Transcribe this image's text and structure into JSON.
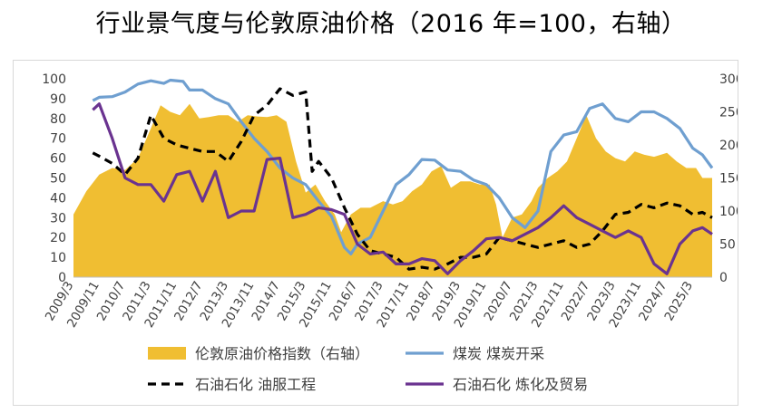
{
  "title": "行业景气度与伦敦原油价格（2016 年=100，右轴）",
  "chart_data": {
    "type": "line",
    "y_left": {
      "min": 0,
      "max": 100,
      "ticks": [
        0,
        10,
        20,
        30,
        40,
        50,
        60,
        70,
        80,
        90,
        100
      ]
    },
    "y_right": {
      "min": 0,
      "max": 300,
      "ticks": [
        0,
        50,
        100,
        150,
        200,
        250,
        300
      ]
    },
    "x_ticks": [
      "2009/3",
      "2009/11",
      "2010/7",
      "2011/3",
      "2011/11",
      "2012/7",
      "2013/3",
      "2013/11",
      "2014/7",
      "2015/3",
      "2015/11",
      "2016/7",
      "2017/3",
      "2017/11",
      "2018/7",
      "2019/3",
      "2019/11",
      "2020/7",
      "2021/3",
      "2021/11",
      "2022/7",
      "2023/3",
      "2023/11",
      "2024/7",
      "2025/3"
    ],
    "x_range": [
      "2009/3",
      "2025/9"
    ],
    "legend_position": "bottom",
    "series": [
      {
        "name": "伦敦原油价格指数（右轴）",
        "type": "area",
        "axis": "right",
        "color": "#F0BE32",
        "points": [
          [
            "2009/3",
            95
          ],
          [
            "2009/7",
            130
          ],
          [
            "2009/11",
            155
          ],
          [
            "2010/3",
            165
          ],
          [
            "2010/7",
            162
          ],
          [
            "2010/11",
            180
          ],
          [
            "2011/3",
            225
          ],
          [
            "2011/6",
            260
          ],
          [
            "2011/9",
            250
          ],
          [
            "2011/12",
            245
          ],
          [
            "2012/3",
            262
          ],
          [
            "2012/6",
            240
          ],
          [
            "2012/9",
            242
          ],
          [
            "2012/12",
            245
          ],
          [
            "2013/3",
            245
          ],
          [
            "2013/6",
            235
          ],
          [
            "2013/9",
            245
          ],
          [
            "2013/12",
            243
          ],
          [
            "2014/3",
            242
          ],
          [
            "2014/6",
            245
          ],
          [
            "2014/9",
            235
          ],
          [
            "2014/12",
            175
          ],
          [
            "2015/3",
            128
          ],
          [
            "2015/6",
            140
          ],
          [
            "2015/9",
            115
          ],
          [
            "2015/12",
            95
          ],
          [
            "2016/2",
            68
          ],
          [
            "2016/5",
            95
          ],
          [
            "2016/8",
            105
          ],
          [
            "2016/11",
            105
          ],
          [
            "2017/3",
            115
          ],
          [
            "2017/6",
            110
          ],
          [
            "2017/9",
            115
          ],
          [
            "2017/12",
            130
          ],
          [
            "2018/3",
            140
          ],
          [
            "2018/6",
            160
          ],
          [
            "2018/9",
            168
          ],
          [
            "2018/12",
            135
          ],
          [
            "2019/3",
            145
          ],
          [
            "2019/6",
            145
          ],
          [
            "2019/9",
            140
          ],
          [
            "2019/12",
            140
          ],
          [
            "2020/2",
            110
          ],
          [
            "2020/4",
            60
          ],
          [
            "2020/7",
            90
          ],
          [
            "2020/10",
            95
          ],
          [
            "2021/1",
            115
          ],
          [
            "2021/3",
            135
          ],
          [
            "2021/6",
            150
          ],
          [
            "2021/9",
            160
          ],
          [
            "2021/12",
            175
          ],
          [
            "2022/3",
            210
          ],
          [
            "2022/6",
            245
          ],
          [
            "2022/9",
            210
          ],
          [
            "2022/12",
            190
          ],
          [
            "2023/3",
            180
          ],
          [
            "2023/6",
            175
          ],
          [
            "2023/9",
            190
          ],
          [
            "2023/12",
            185
          ],
          [
            "2024/3",
            182
          ],
          [
            "2024/7",
            188
          ],
          [
            "2024/10",
            175
          ],
          [
            "2025/1",
            165
          ],
          [
            "2025/4",
            165
          ],
          [
            "2025/6",
            150
          ],
          [
            "2025/9",
            150
          ]
        ]
      },
      {
        "name": "煤炭 煤炭开采",
        "type": "line",
        "axis": "right",
        "color": "#6F9FD0",
        "points": [
          [
            "2009/9",
            267
          ],
          [
            "2009/11",
            272
          ],
          [
            "2010/3",
            273
          ],
          [
            "2010/7",
            280
          ],
          [
            "2010/11",
            292
          ],
          [
            "2011/3",
            297
          ],
          [
            "2011/7",
            293
          ],
          [
            "2011/9",
            298
          ],
          [
            "2012/1",
            296
          ],
          [
            "2012/3",
            283
          ],
          [
            "2012/7",
            283
          ],
          [
            "2012/11",
            270
          ],
          [
            "2013/3",
            262
          ],
          [
            "2013/7",
            235
          ],
          [
            "2013/11",
            210
          ],
          [
            "2014/3",
            190
          ],
          [
            "2014/7",
            165
          ],
          [
            "2014/11",
            150
          ],
          [
            "2015/3",
            140
          ],
          [
            "2015/7",
            115
          ],
          [
            "2015/11",
            92
          ],
          [
            "2016/3",
            45
          ],
          [
            "2016/5",
            35
          ],
          [
            "2016/7",
            50
          ],
          [
            "2016/11",
            60
          ],
          [
            "2017/3",
            100
          ],
          [
            "2017/7",
            140
          ],
          [
            "2017/11",
            155
          ],
          [
            "2018/3",
            178
          ],
          [
            "2018/7",
            177
          ],
          [
            "2018/11",
            162
          ],
          [
            "2019/3",
            160
          ],
          [
            "2019/7",
            147
          ],
          [
            "2019/11",
            140
          ],
          [
            "2020/3",
            120
          ],
          [
            "2020/7",
            90
          ],
          [
            "2020/11",
            75
          ],
          [
            "2021/3",
            100
          ],
          [
            "2021/7",
            190
          ],
          [
            "2021/11",
            215
          ],
          [
            "2022/3",
            220
          ],
          [
            "2022/7",
            255
          ],
          [
            "2022/11",
            262
          ],
          [
            "2023/3",
            240
          ],
          [
            "2023/7",
            235
          ],
          [
            "2023/11",
            250
          ],
          [
            "2024/3",
            250
          ],
          [
            "2024/7",
            240
          ],
          [
            "2024/11",
            225
          ],
          [
            "2025/3",
            195
          ],
          [
            "2025/6",
            185
          ],
          [
            "2025/9",
            165
          ]
        ]
      },
      {
        "name": "石油石化 油服工程",
        "type": "line",
        "axis": "right",
        "dashed": true,
        "color": "#000000",
        "points": [
          [
            "2009/9",
            188
          ],
          [
            "2009/11",
            183
          ],
          [
            "2010/3",
            172
          ],
          [
            "2010/7",
            155
          ],
          [
            "2010/11",
            180
          ],
          [
            "2011/3",
            245
          ],
          [
            "2011/7",
            210
          ],
          [
            "2011/11",
            200
          ],
          [
            "2012/3",
            195
          ],
          [
            "2012/7",
            190
          ],
          [
            "2012/11",
            190
          ],
          [
            "2013/3",
            175
          ],
          [
            "2013/7",
            205
          ],
          [
            "2013/11",
            245
          ],
          [
            "2014/3",
            260
          ],
          [
            "2014/7",
            285
          ],
          [
            "2014/11",
            275
          ],
          [
            "2015/3",
            280
          ],
          [
            "2015/5",
            160
          ],
          [
            "2015/7",
            175
          ],
          [
            "2015/11",
            150
          ],
          [
            "2016/3",
            105
          ],
          [
            "2016/7",
            65
          ],
          [
            "2016/11",
            40
          ],
          [
            "2017/3",
            35
          ],
          [
            "2017/7",
            30
          ],
          [
            "2017/11",
            12
          ],
          [
            "2018/3",
            15
          ],
          [
            "2018/7",
            12
          ],
          [
            "2018/11",
            20
          ],
          [
            "2019/3",
            30
          ],
          [
            "2019/7",
            30
          ],
          [
            "2019/11",
            35
          ],
          [
            "2020/3",
            60
          ],
          [
            "2020/7",
            55
          ],
          [
            "2020/11",
            50
          ],
          [
            "2021/3",
            45
          ],
          [
            "2021/7",
            50
          ],
          [
            "2021/11",
            55
          ],
          [
            "2022/3",
            45
          ],
          [
            "2022/7",
            50
          ],
          [
            "2022/11",
            70
          ],
          [
            "2023/3",
            95
          ],
          [
            "2023/7",
            98
          ],
          [
            "2023/11",
            110
          ],
          [
            "2024/3",
            105
          ],
          [
            "2024/7",
            112
          ],
          [
            "2024/11",
            108
          ],
          [
            "2025/3",
            95
          ],
          [
            "2025/6",
            98
          ],
          [
            "2025/9",
            90
          ]
        ]
      },
      {
        "name": "石油石化 炼化及贸易",
        "type": "line",
        "axis": "right",
        "color": "#6A3390",
        "points": [
          [
            "2009/9",
            253
          ],
          [
            "2009/11",
            262
          ],
          [
            "2010/3",
            210
          ],
          [
            "2010/7",
            150
          ],
          [
            "2010/11",
            140
          ],
          [
            "2011/3",
            140
          ],
          [
            "2011/7",
            115
          ],
          [
            "2011/11",
            155
          ],
          [
            "2012/3",
            160
          ],
          [
            "2012/7",
            115
          ],
          [
            "2012/11",
            160
          ],
          [
            "2013/3",
            90
          ],
          [
            "2013/7",
            100
          ],
          [
            "2013/11",
            100
          ],
          [
            "2014/3",
            178
          ],
          [
            "2014/7",
            180
          ],
          [
            "2014/11",
            90
          ],
          [
            "2015/3",
            95
          ],
          [
            "2015/7",
            105
          ],
          [
            "2015/11",
            102
          ],
          [
            "2016/3",
            95
          ],
          [
            "2016/7",
            50
          ],
          [
            "2016/11",
            35
          ],
          [
            "2017/3",
            38
          ],
          [
            "2017/7",
            20
          ],
          [
            "2017/11",
            20
          ],
          [
            "2018/3",
            28
          ],
          [
            "2018/7",
            25
          ],
          [
            "2018/11",
            5
          ],
          [
            "2019/3",
            25
          ],
          [
            "2019/7",
            40
          ],
          [
            "2019/11",
            58
          ],
          [
            "2020/3",
            60
          ],
          [
            "2020/7",
            55
          ],
          [
            "2020/11",
            65
          ],
          [
            "2021/3",
            75
          ],
          [
            "2021/7",
            90
          ],
          [
            "2021/11",
            108
          ],
          [
            "2022/3",
            90
          ],
          [
            "2022/7",
            80
          ],
          [
            "2022/11",
            70
          ],
          [
            "2023/3",
            60
          ],
          [
            "2023/7",
            70
          ],
          [
            "2023/11",
            60
          ],
          [
            "2024/3",
            20
          ],
          [
            "2024/7",
            5
          ],
          [
            "2024/11",
            50
          ],
          [
            "2025/3",
            70
          ],
          [
            "2025/6",
            75
          ],
          [
            "2025/9",
            65
          ]
        ]
      }
    ]
  }
}
